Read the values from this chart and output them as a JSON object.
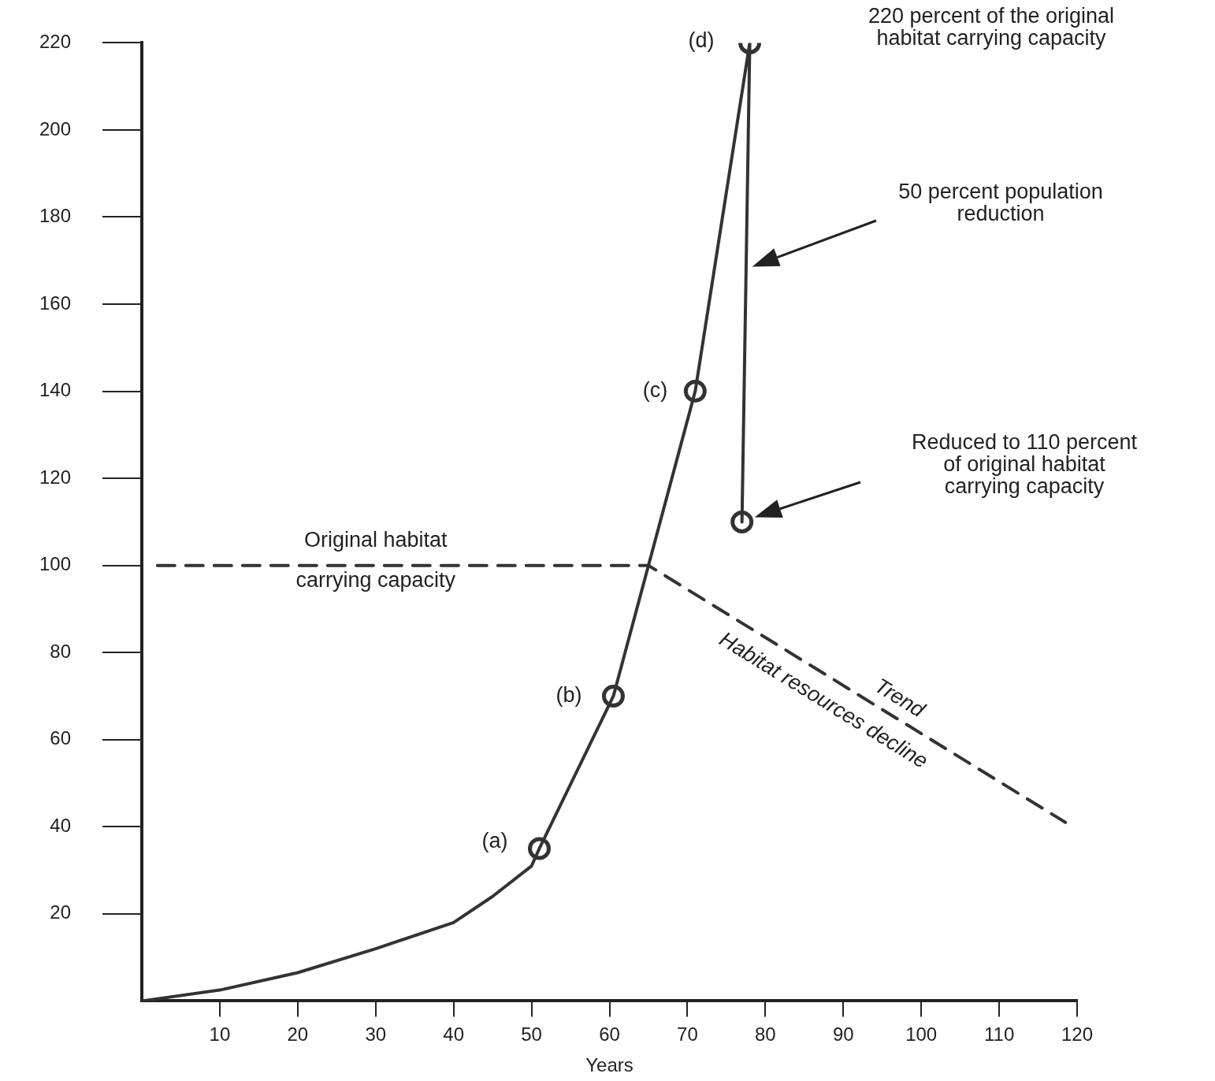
{
  "chart_data": {
    "type": "line",
    "xlabel": "Years",
    "xlim": [
      0,
      120
    ],
    "xticks": [
      10,
      20,
      30,
      40,
      50,
      60,
      70,
      80,
      90,
      100,
      110,
      120
    ],
    "ylim": [
      0,
      220
    ],
    "yticks": [
      20,
      40,
      60,
      80,
      100,
      120,
      140,
      160,
      180,
      200,
      220
    ],
    "grid": false,
    "legend": false,
    "series": [
      {
        "type": "line",
        "color": "#333333",
        "marker": "none",
        "line_style": "solid",
        "x": [
          0,
          10,
          20,
          30,
          40,
          45,
          50,
          51,
          60.5,
          65,
          71,
          78,
          77
        ],
        "values": [
          0,
          2.5,
          6.5,
          12,
          18,
          24,
          31,
          35,
          70,
          100,
          140,
          220,
          110
        ]
      },
      {
        "type": "scatter",
        "color": "#333333",
        "marker": "circle",
        "x": [
          51,
          60.5,
          71,
          78,
          77
        ],
        "values": [
          35,
          70,
          140,
          220,
          110
        ]
      },
      {
        "type": "line",
        "color": "#333333",
        "marker": "none",
        "line_style": "dashed",
        "x": [
          2,
          65,
          118.5
        ],
        "values": [
          100,
          100,
          41
        ]
      }
    ],
    "annotations": [
      {
        "text": "(a)",
        "x": 51,
        "y": 35
      },
      {
        "text": "(b)",
        "x": 60.5,
        "y": 70
      },
      {
        "text": "(c)",
        "x": 71,
        "y": 140
      },
      {
        "text": "(d)",
        "x": 78,
        "y": 220
      },
      "220 percent of the original habitat carrying capacity",
      "50 percent population reduction",
      "Reduced to 110 percent of original habitat carrying capacity",
      {
        "text": "Original habitat carrying capacity",
        "x": 30,
        "y": 100
      },
      {
        "text": "Trend",
        "x": 96,
        "y": 66
      },
      {
        "text": "Habitat resources decline",
        "x": 89,
        "y": 73.5
      }
    ]
  }
}
